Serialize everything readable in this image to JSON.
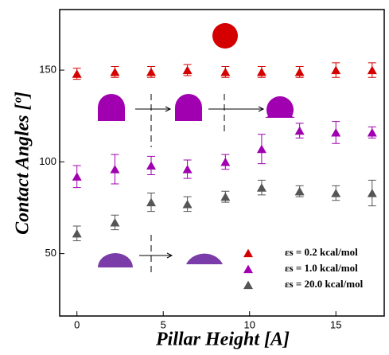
{
  "chart_data": {
    "type": "scatter",
    "x_label": "Pillar Height [A]",
    "y_label": "Contact Angles [º]",
    "xlim": [
      -1,
      17.8
    ],
    "ylim": [
      16,
      183
    ],
    "xticks": [
      0,
      5,
      10,
      15
    ],
    "yticks": [
      50,
      100,
      150
    ],
    "legend": "lower right",
    "series": [
      {
        "name": "εs =  0.2 kcal/mol",
        "color": "#d40000",
        "x": [
          0,
          2.2,
          4.3,
          6.4,
          8.6,
          10.7,
          12.9,
          15,
          17.1
        ],
        "values": [
          148,
          149,
          149,
          150,
          149,
          149,
          149,
          150,
          150
        ],
        "errors": [
          3,
          3,
          3,
          3,
          3,
          3,
          3,
          4,
          4
        ]
      },
      {
        "name": "εs =  1.0 kcal/mol",
        "color": "#a000b0",
        "x": [
          0,
          2.2,
          4.3,
          6.4,
          8.6,
          10.7,
          12.9,
          15,
          17.1
        ],
        "values": [
          92,
          96,
          98,
          96,
          100,
          107,
          117,
          116,
          116
        ],
        "errors": [
          6,
          8,
          5,
          5,
          4,
          8,
          4,
          6,
          3
        ]
      },
      {
        "name": "εs = 20.0 kcal/mol",
        "color": "#555555",
        "x": [
          0,
          2.2,
          4.3,
          6.4,
          8.6,
          10.7,
          12.9,
          15,
          17.1
        ],
        "values": [
          61,
          67,
          78,
          77,
          81,
          86,
          84,
          83,
          83
        ],
        "errors": [
          4,
          4,
          5,
          4,
          3,
          4,
          3,
          4,
          7
        ]
      }
    ]
  }
}
